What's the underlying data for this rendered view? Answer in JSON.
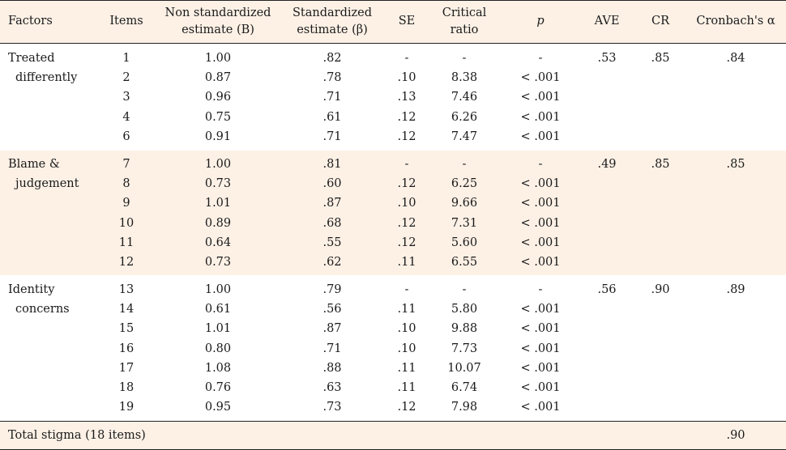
{
  "headers": {
    "factors": "Factors",
    "items": "Items",
    "non_std": [
      "Non standardized",
      "estimate (B)"
    ],
    "std": [
      "Standardized",
      "estimate (β)"
    ],
    "se": "SE",
    "cr_ratio": [
      "Critical",
      "ratio"
    ],
    "p": "p",
    "ave": "AVE",
    "cr": "CR",
    "alpha": "Cronbach's α"
  },
  "groups": [
    {
      "factor": [
        "Treated",
        "differently"
      ],
      "ave": ".53",
      "cr": ".85",
      "alpha": ".84",
      "rows": [
        {
          "item": "1",
          "b": "1.00",
          "beta": ".82",
          "se": "-",
          "ratio": "-",
          "p": "-"
        },
        {
          "item": "2",
          "b": "0.87",
          "beta": ".78",
          "se": ".10",
          "ratio": "8.38",
          "p": "< .001"
        },
        {
          "item": "3",
          "b": "0.96",
          "beta": ".71",
          "se": ".13",
          "ratio": "7.46",
          "p": "< .001"
        },
        {
          "item": "4",
          "b": "0.75",
          "beta": ".61",
          "se": ".12",
          "ratio": "6.26",
          "p": "< .001"
        },
        {
          "item": "6",
          "b": "0.91",
          "beta": ".71",
          "se": ".12",
          "ratio": "7.47",
          "p": "< .001"
        }
      ]
    },
    {
      "factor": [
        "Blame &",
        "judgement"
      ],
      "ave": ".49",
      "cr": ".85",
      "alpha": ".85",
      "rows": [
        {
          "item": "7",
          "b": "1.00",
          "beta": ".81",
          "se": "-",
          "ratio": "-",
          "p": "-"
        },
        {
          "item": "8",
          "b": "0.73",
          "beta": ".60",
          "se": ".12",
          "ratio": "6.25",
          "p": "< .001"
        },
        {
          "item": "9",
          "b": "1.01",
          "beta": ".87",
          "se": ".10",
          "ratio": "9.66",
          "p": "< .001"
        },
        {
          "item": "10",
          "b": "0.89",
          "beta": ".68",
          "se": ".12",
          "ratio": "7.31",
          "p": "< .001"
        },
        {
          "item": "11",
          "b": "0.64",
          "beta": ".55",
          "se": ".12",
          "ratio": "5.60",
          "p": "< .001"
        },
        {
          "item": "12",
          "b": "0.73",
          "beta": ".62",
          "se": ".11",
          "ratio": "6.55",
          "p": "< .001"
        }
      ]
    },
    {
      "factor": [
        "Identity",
        "concerns"
      ],
      "ave": ".56",
      "cr": ".90",
      "alpha": ".89",
      "rows": [
        {
          "item": "13",
          "b": "1.00",
          "beta": ".79",
          "se": "-",
          "ratio": "-",
          "p": "-"
        },
        {
          "item": "14",
          "b": "0.61",
          "beta": ".56",
          "se": ".11",
          "ratio": "5.80",
          "p": "< .001"
        },
        {
          "item": "15",
          "b": "1.01",
          "beta": ".87",
          "se": ".10",
          "ratio": "9.88",
          "p": "< .001"
        },
        {
          "item": "16",
          "b": "0.80",
          "beta": ".71",
          "se": ".10",
          "ratio": "7.73",
          "p": "< .001"
        },
        {
          "item": "17",
          "b": "1.08",
          "beta": ".88",
          "se": ".11",
          "ratio": "10.07",
          "p": "< .001"
        },
        {
          "item": "18",
          "b": "0.76",
          "beta": ".63",
          "se": ".11",
          "ratio": "6.74",
          "p": "< .001"
        },
        {
          "item": "19",
          "b": "0.95",
          "beta": ".73",
          "se": ".12",
          "ratio": "7.98",
          "p": "< .001"
        }
      ]
    }
  ],
  "total": {
    "label": "Total stigma (18 items)",
    "alpha": ".90"
  },
  "colors": {
    "band": "#fdf1e6",
    "rule": "#222222"
  }
}
